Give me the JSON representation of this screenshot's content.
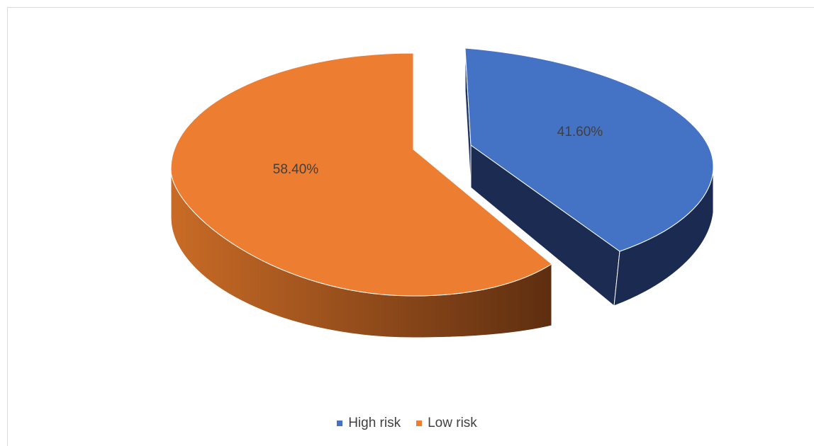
{
  "chart_data": {
    "type": "pie",
    "categories": [
      "High risk",
      "Low risk"
    ],
    "values": [
      41.6,
      58.4
    ],
    "data_labels": [
      "41.60%",
      "58.40%"
    ],
    "colors": [
      "#4472C4",
      "#ED7D31"
    ],
    "style": "3d-exploded",
    "legend_position": "bottom"
  },
  "legend": {
    "items": [
      {
        "label": "High risk",
        "color": "#4472C4"
      },
      {
        "label": "Low risk",
        "color": "#ED7D31"
      }
    ]
  }
}
